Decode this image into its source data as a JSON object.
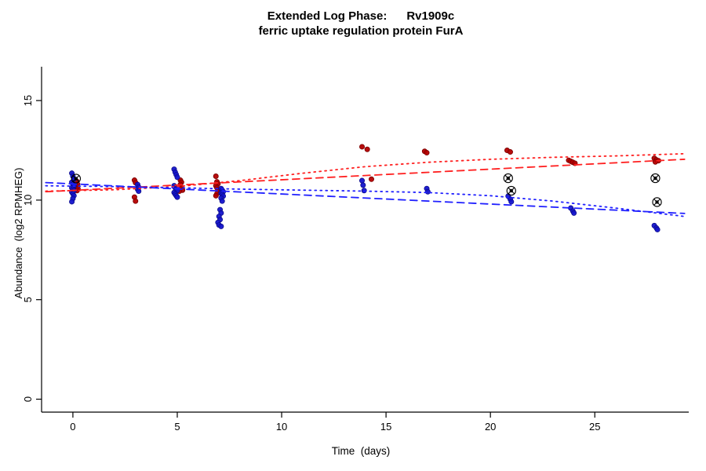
{
  "title": {
    "line1": "Extended Log Phase:      Rv1909c",
    "line2": "ferric uptake regulation protein FurA"
  },
  "chart_data": {
    "type": "scatter",
    "title": "Extended Log Phase: Rv1909c — ferric uptake regulation protein FurA",
    "xlabel": "Time  (days)",
    "ylabel": "Abundance  (log2 RPMHEG)",
    "xlim": [
      -1.5,
      29.5
    ],
    "ylim": [
      -0.65,
      16.7
    ],
    "xticks": [
      0,
      5,
      10,
      15,
      20,
      25
    ],
    "yticks": [
      0,
      5,
      10,
      15
    ],
    "grid": false,
    "legend": "none",
    "colors": {
      "red_points": "#b30000",
      "red_points_stroke": "#7a0000",
      "blue_points": "#1414cc",
      "blue_points_stroke": "#0b0b8c",
      "red_line": "#ff2020",
      "blue_line": "#2020ff",
      "outlier": "#000000",
      "axis": "#000000"
    },
    "series": [
      {
        "name": "red-points",
        "type": "points",
        "color": "#b30000",
        "stroke": "#7a0000",
        "points": [
          [
            0.18,
            10.95
          ],
          [
            0.22,
            10.8
          ],
          [
            0.18,
            10.68
          ],
          [
            0.24,
            10.58
          ],
          [
            0.2,
            10.48
          ],
          [
            2.95,
            11.0
          ],
          [
            3.0,
            10.88
          ],
          [
            2.95,
            10.15
          ],
          [
            3.0,
            9.95
          ],
          [
            5.15,
            11.0
          ],
          [
            5.2,
            10.9
          ],
          [
            5.15,
            10.78
          ],
          [
            5.2,
            10.62
          ],
          [
            5.25,
            10.5
          ],
          [
            5.1,
            10.45
          ],
          [
            6.85,
            11.2
          ],
          [
            6.9,
            10.92
          ],
          [
            6.95,
            10.82
          ],
          [
            6.85,
            10.72
          ],
          [
            6.9,
            10.62
          ],
          [
            6.95,
            10.52
          ],
          [
            7.0,
            10.45
          ],
          [
            6.9,
            10.32
          ],
          [
            6.85,
            10.22
          ],
          [
            13.85,
            12.68
          ],
          [
            14.1,
            12.55
          ],
          [
            14.3,
            11.05
          ],
          [
            16.85,
            12.45
          ],
          [
            16.95,
            12.38
          ],
          [
            20.8,
            12.5
          ],
          [
            20.95,
            12.42
          ],
          [
            23.75,
            12.0
          ],
          [
            23.85,
            11.95
          ],
          [
            23.95,
            11.9
          ],
          [
            24.05,
            11.85
          ],
          [
            27.85,
            12.1
          ],
          [
            27.95,
            12.02
          ],
          [
            28.05,
            11.98
          ],
          [
            27.9,
            11.92
          ]
        ]
      },
      {
        "name": "blue-points",
        "type": "points",
        "color": "#1414cc",
        "stroke": "#0b0b8c",
        "points": [
          [
            -0.05,
            11.35
          ],
          [
            0.0,
            11.2
          ],
          [
            0.05,
            11.05
          ],
          [
            -0.05,
            10.9
          ],
          [
            0.0,
            10.8
          ],
          [
            0.05,
            10.72
          ],
          [
            -0.05,
            10.62
          ],
          [
            0.0,
            10.55
          ],
          [
            0.05,
            10.48
          ],
          [
            -0.05,
            10.4
          ],
          [
            0.0,
            10.32
          ],
          [
            0.05,
            10.22
          ],
          [
            0.0,
            10.08
          ],
          [
            -0.05,
            9.92
          ],
          [
            3.1,
            10.78
          ],
          [
            3.15,
            10.65
          ],
          [
            3.1,
            10.55
          ],
          [
            3.15,
            10.45
          ],
          [
            4.85,
            11.55
          ],
          [
            4.9,
            11.4
          ],
          [
            4.95,
            11.28
          ],
          [
            5.0,
            11.15
          ],
          [
            4.85,
            10.72
          ],
          [
            4.9,
            10.62
          ],
          [
            4.95,
            10.55
          ],
          [
            5.0,
            10.48
          ],
          [
            4.85,
            10.38
          ],
          [
            4.9,
            10.3
          ],
          [
            4.95,
            10.22
          ],
          [
            5.0,
            10.15
          ],
          [
            7.1,
            10.58
          ],
          [
            7.15,
            10.5
          ],
          [
            7.2,
            10.42
          ],
          [
            7.1,
            10.35
          ],
          [
            7.15,
            10.28
          ],
          [
            7.2,
            10.2
          ],
          [
            7.1,
            10.1
          ],
          [
            7.15,
            9.95
          ],
          [
            7.05,
            9.52
          ],
          [
            7.1,
            9.35
          ],
          [
            7.0,
            9.18
          ],
          [
            7.05,
            9.02
          ],
          [
            6.95,
            8.88
          ],
          [
            7.0,
            8.75
          ],
          [
            7.1,
            8.68
          ],
          [
            13.85,
            10.98
          ],
          [
            13.9,
            10.75
          ],
          [
            13.95,
            10.48
          ],
          [
            16.95,
            10.58
          ],
          [
            17.0,
            10.42
          ],
          [
            20.85,
            10.2
          ],
          [
            20.95,
            10.05
          ],
          [
            21.0,
            9.92
          ],
          [
            23.85,
            9.6
          ],
          [
            23.95,
            9.45
          ],
          [
            24.0,
            9.35
          ],
          [
            27.85,
            8.72
          ],
          [
            27.95,
            8.6
          ],
          [
            28.0,
            8.52
          ]
        ]
      },
      {
        "name": "outlier-circled-points",
        "type": "circled",
        "color": "#000000",
        "points": [
          [
            0.15,
            11.08
          ],
          [
            20.85,
            11.1
          ],
          [
            21.0,
            10.47
          ],
          [
            27.9,
            11.1
          ],
          [
            27.98,
            9.9
          ]
        ]
      },
      {
        "name": "red-trend-dashed",
        "type": "line",
        "style": "dashed",
        "color": "#ff2020",
        "x": [
          -1.3,
          29.3
        ],
        "y": [
          10.42,
          12.05
        ]
      },
      {
        "name": "red-trend-dotted",
        "type": "line",
        "style": "dotted",
        "color": "#ff2020",
        "x": [
          -1.3,
          2,
          5,
          8,
          11,
          14,
          17,
          20,
          23,
          26,
          29.3
        ],
        "y": [
          10.45,
          10.52,
          10.68,
          10.98,
          11.35,
          11.68,
          11.9,
          12.05,
          12.15,
          12.22,
          12.33
        ]
      },
      {
        "name": "blue-trend-dashed",
        "type": "line",
        "style": "dashed",
        "color": "#2020ff",
        "x": [
          -1.3,
          29.3
        ],
        "y": [
          10.88,
          9.33
        ]
      },
      {
        "name": "blue-trend-dotted",
        "type": "line",
        "style": "dotted",
        "color": "#2020ff",
        "x": [
          -1.3,
          2,
          5,
          8,
          11,
          14,
          17,
          20,
          23,
          26,
          29.3
        ],
        "y": [
          10.72,
          10.68,
          10.62,
          10.55,
          10.5,
          10.45,
          10.38,
          10.22,
          9.95,
          9.6,
          9.18
        ]
      }
    ]
  }
}
